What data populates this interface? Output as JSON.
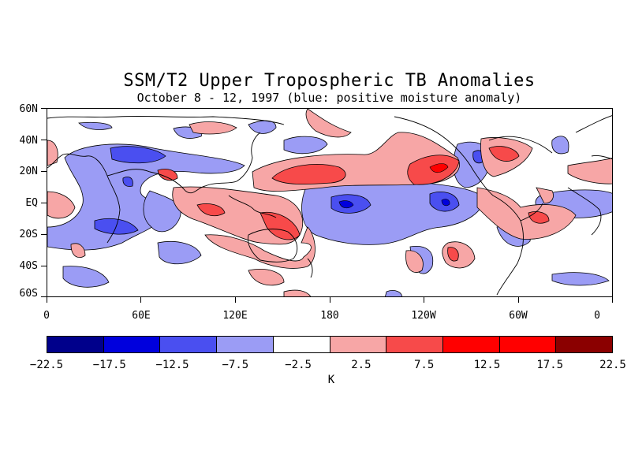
{
  "title": "SSM/T2 Upper Tropospheric TB Anomalies",
  "subtitle": "October 8 - 12, 1997 (blue: positive moisture anomaly)",
  "lat_labels": [
    "60N",
    "40N",
    "20N",
    "EQ",
    "20S",
    "40S",
    "60S"
  ],
  "lon_labels": [
    "0",
    "60E",
    "120E",
    "180",
    "120W",
    "60W",
    "0"
  ],
  "colorbar": {
    "colors": [
      "#00008b",
      "#0000dd",
      "#4a4ff0",
      "#9b9cf5",
      "#ffffff",
      "#f7a6a6",
      "#f74a4a",
      "#ff0000",
      "#ff0000",
      "#8b0000"
    ],
    "labels": [
      "-22.5",
      "-17.5",
      "-12.5",
      "-7.5",
      "-2.5",
      "2.5",
      "7.5",
      "12.5",
      "17.5",
      "22.5"
    ],
    "units": "K"
  }
}
